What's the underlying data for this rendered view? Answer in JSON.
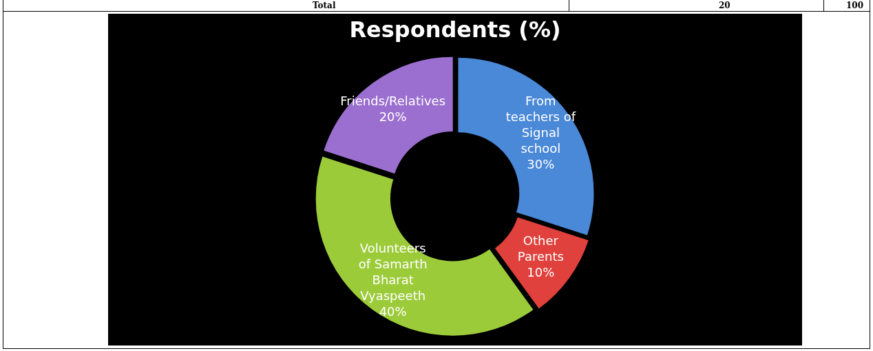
{
  "chart_data": {
    "type": "donut",
    "title": "Respondents (%)",
    "categories": [
      "From teachers of Signal school",
      "Other Parents",
      "Volunteers of Samarth Bharat Vyaspeeth",
      "Friends/Relatives"
    ],
    "values": [
      30,
      10,
      40,
      20
    ],
    "colors": [
      "#4a88d8",
      "#e0413c",
      "#9ccb3a",
      "#9b6fcf"
    ],
    "value_labels": [
      "30%",
      "10%",
      "40%",
      "20%"
    ],
    "annotations": [
      "Total",
      "20",
      "100"
    ]
  }
}
